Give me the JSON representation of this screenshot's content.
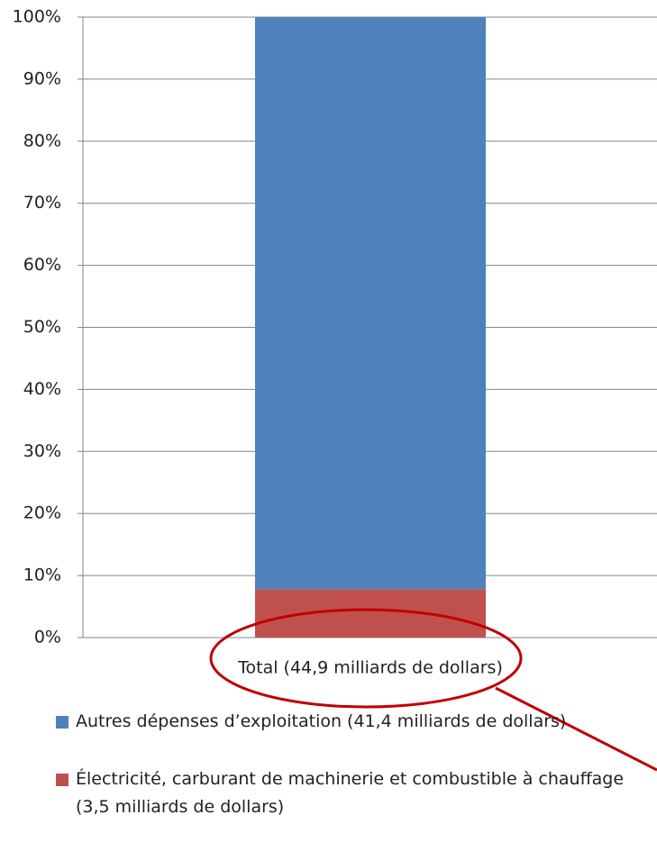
{
  "chart_data": {
    "type": "stacked_bar",
    "categories": [
      "Total (44,9 milliards de dollars)"
    ],
    "series": [
      {
        "name": "Électricité, carburant de machinerie et combustible à chauffage (3,5 milliards de dollars)",
        "color": "#c0504d",
        "values": [
          7.8
        ]
      },
      {
        "name": "Autres dépenses d’exploitation (41,4 milliards de dollars)",
        "color": "#4f81bd",
        "values": [
          92.2
        ]
      }
    ],
    "ylim": [
      0,
      100
    ],
    "yticks": [
      {
        "value": 0,
        "label": "0%"
      },
      {
        "value": 10,
        "label": "10%"
      },
      {
        "value": 20,
        "label": "20%"
      },
      {
        "value": 30,
        "label": "30%"
      },
      {
        "value": 40,
        "label": "40%"
      },
      {
        "value": 50,
        "label": "50%"
      },
      {
        "value": 60,
        "label": "60%"
      },
      {
        "value": 70,
        "label": "70%"
      },
      {
        "value": 80,
        "label": "80%"
      },
      {
        "value": 90,
        "label": "90%"
      },
      {
        "value": 100,
        "label": "100%"
      }
    ],
    "grid": true
  }
}
